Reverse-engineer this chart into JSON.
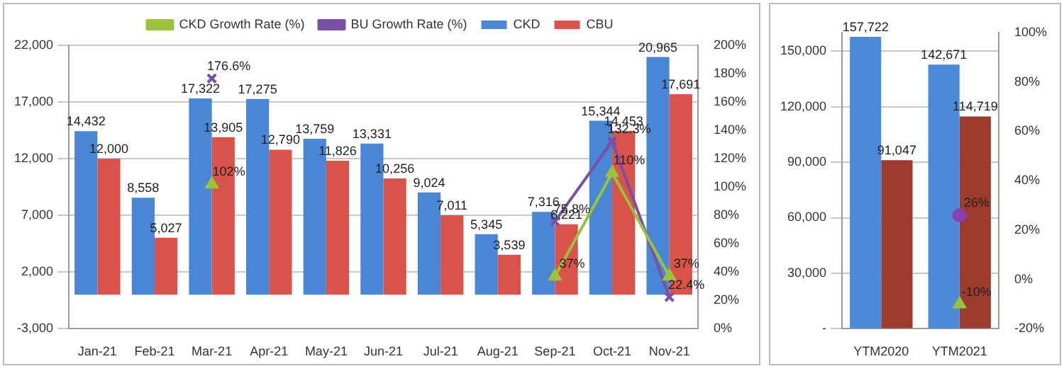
{
  "chart_data": [
    {
      "type": "bar",
      "categories": [
        "Jan-21",
        "Feb-21",
        "Mar-21",
        "Apr-21",
        "May-21",
        "Jun-21",
        "Jul-21",
        "Aug-21",
        "Sep-21",
        "Oct-21",
        "Nov-21"
      ],
      "series": [
        {
          "name": "CKD",
          "color": "#4a86d6",
          "values": [
            14432,
            8558,
            17322,
            17275,
            13759,
            13331,
            9024,
            5345,
            7316,
            15344,
            20965
          ],
          "value_labels": [
            "14,432",
            "8,558",
            "17,322",
            "17,275",
            "13,759",
            "13,331",
            "9,024",
            "5,345",
            "7,316",
            "15,344",
            "20,965"
          ]
        },
        {
          "name": "CBU",
          "color": "#d9534a",
          "values": [
            12000,
            5027,
            13905,
            12790,
            11826,
            10256,
            7011,
            3539,
            6221,
            14453,
            17691
          ],
          "value_labels": [
            "12,000",
            "5,027",
            "13,905",
            "12,790",
            "11,826",
            "10,256",
            "7,011",
            "3,539",
            "6,221",
            "14,453",
            "17,691"
          ]
        },
        {
          "name": "CKD Growth Rate (%)",
          "type": "line",
          "axis": "y2",
          "color": "#9bc23c",
          "marker": "triangle",
          "values": [
            null,
            null,
            102,
            null,
            null,
            null,
            null,
            null,
            37,
            110,
            37
          ],
          "value_labels": [
            null,
            null,
            "102%",
            null,
            null,
            null,
            null,
            null,
            "37%",
            "110%",
            "37%"
          ]
        },
        {
          "name": "BU Growth Rate (%)",
          "type": "line",
          "axis": "y2",
          "color": "#7a4fa6",
          "marker": "cross",
          "values": [
            null,
            null,
            176.6,
            null,
            null,
            null,
            null,
            null,
            75.8,
            132.3,
            22.4
          ],
          "value_labels": [
            null,
            null,
            "176.6%",
            null,
            null,
            null,
            null,
            null,
            "75.8%",
            "132.3%",
            "22.4%"
          ]
        }
      ],
      "ylim": [
        -3000,
        22000
      ],
      "yticks": [
        {
          "value": -3000,
          "label": "-3,000"
        },
        {
          "value": 2000,
          "label": "2,000"
        },
        {
          "value": 7000,
          "label": "7,000"
        },
        {
          "value": 12000,
          "label": "12,000"
        },
        {
          "value": 17000,
          "label": "17,000"
        },
        {
          "value": 22000,
          "label": "22,000"
        }
      ],
      "y2lim": [
        0,
        200
      ],
      "y2ticks": [
        {
          "value": 0,
          "label": "0%"
        },
        {
          "value": 20,
          "label": "20%"
        },
        {
          "value": 40,
          "label": "40%"
        },
        {
          "value": 60,
          "label": "60%"
        },
        {
          "value": 80,
          "label": "80%"
        },
        {
          "value": 100,
          "label": "100%"
        },
        {
          "value": 120,
          "label": "120%"
        },
        {
          "value": 140,
          "label": "140%"
        },
        {
          "value": 160,
          "label": "160%"
        },
        {
          "value": 180,
          "label": "180%"
        },
        {
          "value": 200,
          "label": "200%"
        }
      ],
      "grid": "y",
      "legend": "top"
    },
    {
      "type": "bar",
      "categories": [
        "YTM2020",
        "YTM2021"
      ],
      "series": [
        {
          "color": "#4a8ad8",
          "values": [
            157722,
            142671
          ],
          "value_labels": [
            "157,722",
            "142,671"
          ]
        },
        {
          "color": "#9e3b2f",
          "values": [
            91047,
            114719
          ],
          "value_labels": [
            "91,047",
            "114,719"
          ]
        },
        {
          "type": "line",
          "axis": "y2",
          "color": "#9bc23c",
          "marker": "triangle",
          "values": [
            null,
            -10
          ],
          "value_labels": [
            null,
            "-10%"
          ]
        },
        {
          "type": "line",
          "axis": "y2",
          "color": "#8a3fb0",
          "marker": "circle",
          "values": [
            null,
            26
          ],
          "value_labels": [
            null,
            "26%"
          ]
        }
      ],
      "ylim": [
        0,
        160000
      ],
      "yticks": [
        {
          "value": 0,
          "label": "-"
        },
        {
          "value": 30000,
          "label": "30,000"
        },
        {
          "value": 60000,
          "label": "60,000"
        },
        {
          "value": 90000,
          "label": "90,000"
        },
        {
          "value": 120000,
          "label": "120,000"
        },
        {
          "value": 150000,
          "label": "150,000"
        }
      ],
      "y2lim": [
        -20,
        100
      ],
      "y2ticks": [
        {
          "value": -20,
          "label": "-20%"
        },
        {
          "value": 0,
          "label": "0%"
        },
        {
          "value": 20,
          "label": "20%"
        },
        {
          "value": 40,
          "label": "40%"
        },
        {
          "value": 60,
          "label": "60%"
        },
        {
          "value": 80,
          "label": "80%"
        },
        {
          "value": 100,
          "label": "100%"
        }
      ],
      "grid": "y",
      "legend": false
    }
  ]
}
